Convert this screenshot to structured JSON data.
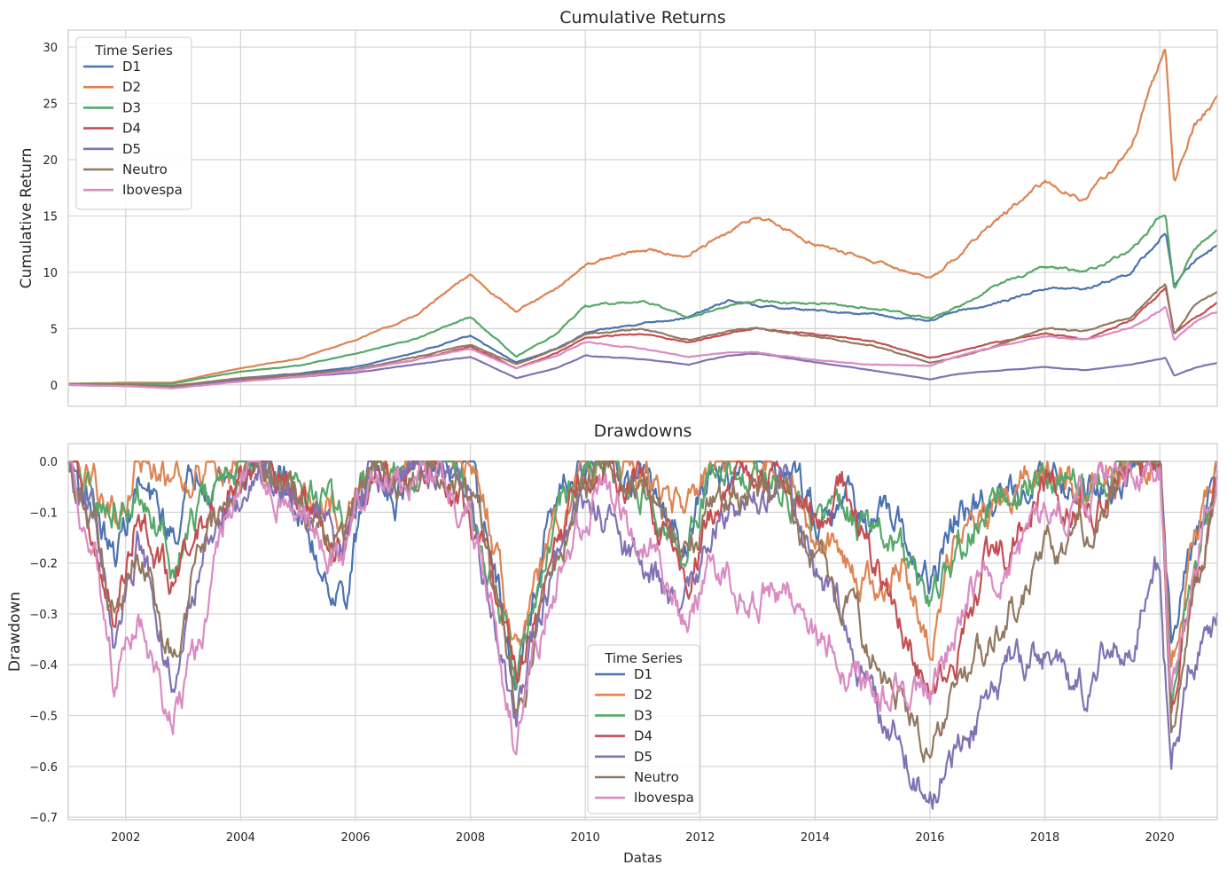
{
  "figure": {
    "xlabel": "Datas",
    "palette": {
      "D1": "#4c72b0",
      "D2": "#dd8452",
      "D3": "#55a868",
      "D4": "#c44e52",
      "D5": "#8172b3",
      "Neutro": "#937860",
      "Ibovespa": "#da8bc3"
    },
    "legend_title": "Time Series",
    "x_ticks": [
      "2002",
      "2004",
      "2006",
      "2008",
      "2010",
      "2012",
      "2014",
      "2016",
      "2018",
      "2020"
    ]
  },
  "chart_data": [
    {
      "type": "line",
      "title": "Cumulative Returns",
      "xlabel": "",
      "ylabel": "Cumulative Return",
      "xlim": [
        2001.0,
        2021.0
      ],
      "ylim": [
        -1.9,
        31.5
      ],
      "y_ticks": [
        "0",
        "5",
        "10",
        "15",
        "20",
        "25",
        "30"
      ],
      "grid": true,
      "legend": {
        "title": "Time Series",
        "placement": "upper-left"
      },
      "x": [
        2001.0,
        2002.0,
        2002.8,
        2004.0,
        2005.0,
        2006.0,
        2007.0,
        2008.0,
        2008.8,
        2009.5,
        2010.0,
        2011.0,
        2011.8,
        2012.5,
        2013.0,
        2014.0,
        2015.0,
        2016.0,
        2016.5,
        2017.0,
        2018.0,
        2018.7,
        2019.5,
        2020.1,
        2020.25,
        2020.6,
        2021.0
      ],
      "series": [
        {
          "name": "D1",
          "values": [
            0.1,
            0.0,
            -0.1,
            0.6,
            1.0,
            1.6,
            2.8,
            4.4,
            2.0,
            3.2,
            4.6,
            5.5,
            6.0,
            7.5,
            7.0,
            6.6,
            6.3,
            5.6,
            6.7,
            7.0,
            8.6,
            8.5,
            10.0,
            13.5,
            8.9,
            11.0,
            12.5
          ]
        },
        {
          "name": "D2",
          "values": [
            0.1,
            0.2,
            0.2,
            1.5,
            2.3,
            4.0,
            6.0,
            9.8,
            6.5,
            8.5,
            10.7,
            12.0,
            11.5,
            13.5,
            15.0,
            12.5,
            11.0,
            9.5,
            11.5,
            14.0,
            18.0,
            16.5,
            21.0,
            30.0,
            18.0,
            23.0,
            25.5
          ]
        },
        {
          "name": "D3",
          "values": [
            0.1,
            0.1,
            0.1,
            1.2,
            1.7,
            2.8,
            4.0,
            6.0,
            2.5,
            4.5,
            7.0,
            7.5,
            6.0,
            7.0,
            7.5,
            7.2,
            6.8,
            5.9,
            7.0,
            8.5,
            10.5,
            10.0,
            12.0,
            15.3,
            8.5,
            12.0,
            13.8
          ]
        },
        {
          "name": "D4",
          "values": [
            0.1,
            -0.1,
            -0.2,
            0.5,
            0.9,
            1.3,
            2.2,
            3.4,
            1.5,
            2.8,
            4.2,
            4.5,
            3.8,
            4.6,
            5.0,
            4.5,
            3.9,
            2.4,
            3.0,
            3.6,
            4.6,
            4.0,
            5.8,
            8.5,
            4.5,
            6.0,
            7.2
          ]
        },
        {
          "name": "D5",
          "values": [
            0.0,
            -0.1,
            -0.2,
            0.4,
            0.7,
            1.1,
            1.8,
            2.5,
            0.6,
            1.5,
            2.6,
            2.3,
            1.8,
            2.6,
            2.8,
            2.0,
            1.3,
            0.5,
            1.0,
            1.2,
            1.6,
            1.3,
            1.8,
            2.4,
            0.8,
            1.5,
            2.0
          ]
        },
        {
          "name": "Neutro",
          "values": [
            0.1,
            0.0,
            -0.1,
            0.6,
            0.9,
            1.4,
            2.4,
            3.6,
            1.8,
            3.2,
            4.5,
            5.0,
            4.0,
            4.8,
            5.0,
            4.3,
            3.5,
            2.0,
            2.5,
            3.2,
            5.0,
            4.8,
            6.0,
            9.0,
            4.5,
            7.0,
            8.3
          ]
        },
        {
          "name": "Ibovespa",
          "values": [
            0.0,
            -0.1,
            -0.3,
            0.3,
            0.7,
            1.3,
            2.2,
            3.2,
            1.5,
            2.6,
            3.8,
            3.2,
            2.5,
            2.9,
            2.9,
            2.2,
            1.8,
            1.7,
            2.6,
            3.2,
            4.3,
            4.0,
            5.0,
            7.0,
            4.0,
            5.5,
            6.5
          ]
        }
      ]
    },
    {
      "type": "line",
      "title": "Drawdowns",
      "xlabel": "Datas",
      "ylabel": "Drawdown",
      "xlim": [
        2001.0,
        2021.0
      ],
      "ylim": [
        -0.705,
        0.035
      ],
      "y_ticks": [
        "0.0",
        "−0.1",
        "−0.2",
        "−0.3",
        "−0.4",
        "−0.5",
        "−0.6",
        "−0.7"
      ],
      "grid": true,
      "legend": {
        "title": "Time Series",
        "placement": "lower-center"
      },
      "x": [
        2001.0,
        2001.5,
        2001.8,
        2002.2,
        2002.8,
        2003.3,
        2003.8,
        2004.3,
        2004.8,
        2005.3,
        2005.8,
        2006.3,
        2006.7,
        2007.3,
        2008.0,
        2008.3,
        2008.8,
        2009.3,
        2009.8,
        2010.3,
        2011.0,
        2011.7,
        2012.2,
        2012.8,
        2013.5,
        2014.0,
        2014.5,
        2015.0,
        2015.5,
        2016.0,
        2016.5,
        2017.0,
        2017.5,
        2018.0,
        2018.5,
        2019.0,
        2019.5,
        2020.0,
        2020.2,
        2020.5,
        2021.0
      ],
      "series": [
        {
          "name": "D1",
          "values": [
            0,
            -0.1,
            -0.2,
            -0.05,
            -0.15,
            0,
            -0.03,
            0,
            -0.05,
            -0.18,
            -0.27,
            0,
            -0.05,
            0,
            -0.05,
            -0.15,
            -0.45,
            -0.15,
            -0.03,
            0,
            -0.05,
            -0.15,
            -0.02,
            0,
            0,
            -0.1,
            -0.05,
            -0.12,
            -0.15,
            -0.25,
            -0.1,
            -0.1,
            -0.05,
            0,
            -0.05,
            -0.03,
            0,
            0,
            -0.35,
            -0.2,
            0
          ]
        },
        {
          "name": "D2",
          "values": [
            0,
            -0.05,
            -0.1,
            0,
            -0.03,
            0,
            -0.02,
            0,
            -0.03,
            -0.05,
            -0.1,
            0,
            -0.02,
            0,
            -0.03,
            -0.1,
            -0.35,
            -0.2,
            -0.05,
            0,
            -0.03,
            -0.1,
            -0.02,
            0,
            -0.05,
            -0.15,
            -0.2,
            -0.25,
            -0.2,
            -0.35,
            -0.15,
            -0.1,
            -0.05,
            0,
            -0.05,
            -0.03,
            0,
            0,
            -0.4,
            -0.2,
            0
          ]
        },
        {
          "name": "D3",
          "values": [
            0,
            -0.08,
            -0.1,
            -0.05,
            -0.2,
            -0.1,
            -0.02,
            0,
            -0.03,
            -0.08,
            -0.12,
            0,
            -0.03,
            0,
            -0.05,
            -0.2,
            -0.45,
            -0.2,
            -0.05,
            0,
            -0.05,
            -0.2,
            -0.03,
            0,
            -0.05,
            -0.1,
            -0.1,
            -0.15,
            -0.2,
            -0.3,
            -0.15,
            -0.08,
            -0.05,
            0,
            -0.05,
            -0.02,
            0,
            0,
            -0.45,
            -0.25,
            -0.05
          ]
        },
        {
          "name": "D4",
          "values": [
            0,
            -0.15,
            -0.35,
            -0.1,
            -0.25,
            -0.15,
            -0.03,
            0,
            -0.05,
            -0.1,
            -0.18,
            0,
            -0.05,
            0,
            -0.1,
            -0.2,
            -0.45,
            -0.25,
            -0.08,
            0,
            -0.05,
            -0.25,
            -0.1,
            -0.02,
            -0.02,
            -0.1,
            -0.05,
            -0.2,
            -0.3,
            -0.48,
            -0.35,
            -0.2,
            -0.15,
            -0.05,
            -0.1,
            -0.08,
            0,
            -0.02,
            -0.45,
            -0.3,
            -0.05
          ]
        },
        {
          "name": "D5",
          "values": [
            0,
            -0.15,
            -0.35,
            -0.15,
            -0.4,
            -0.2,
            -0.05,
            0,
            -0.05,
            -0.1,
            -0.15,
            0,
            -0.05,
            0,
            -0.1,
            -0.25,
            -0.5,
            -0.25,
            -0.12,
            -0.1,
            -0.2,
            -0.3,
            -0.15,
            -0.05,
            -0.08,
            -0.25,
            -0.3,
            -0.45,
            -0.55,
            -0.66,
            -0.55,
            -0.48,
            -0.4,
            -0.38,
            -0.48,
            -0.4,
            -0.35,
            -0.2,
            -0.62,
            -0.4,
            -0.3
          ]
        },
        {
          "name": "Neutro",
          "values": [
            0,
            -0.12,
            -0.3,
            -0.15,
            -0.35,
            -0.2,
            -0.05,
            0,
            -0.05,
            -0.12,
            -0.18,
            0,
            -0.05,
            0,
            -0.08,
            -0.2,
            -0.5,
            -0.25,
            -0.08,
            0,
            -0.05,
            -0.2,
            -0.08,
            -0.05,
            -0.05,
            -0.2,
            -0.25,
            -0.38,
            -0.45,
            -0.58,
            -0.45,
            -0.35,
            -0.28,
            -0.18,
            -0.15,
            -0.1,
            -0.02,
            0,
            -0.52,
            -0.3,
            -0.08
          ]
        },
        {
          "name": "Ibovespa",
          "values": [
            0,
            -0.2,
            -0.42,
            -0.3,
            -0.52,
            -0.35,
            -0.08,
            0,
            -0.1,
            -0.15,
            -0.2,
            0,
            -0.05,
            0,
            -0.1,
            -0.25,
            -0.58,
            -0.3,
            -0.15,
            -0.05,
            -0.15,
            -0.3,
            -0.2,
            -0.25,
            -0.25,
            -0.35,
            -0.38,
            -0.45,
            -0.45,
            -0.45,
            -0.3,
            -0.2,
            -0.2,
            -0.1,
            -0.08,
            -0.05,
            0,
            -0.02,
            -0.45,
            -0.25,
            0
          ]
        }
      ]
    }
  ]
}
